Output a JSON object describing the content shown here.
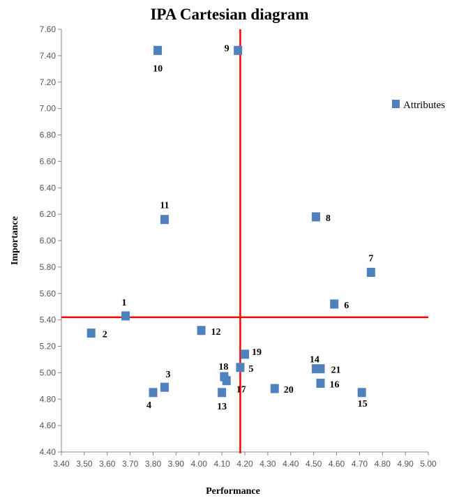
{
  "chart_data": {
    "type": "scatter",
    "title": "IPA Cartesian diagram",
    "xlabel": "Performance",
    "ylabel": "Importance",
    "xlim": [
      3.4,
      5.0
    ],
    "ylim": [
      4.4,
      7.6
    ],
    "x_ticks": [
      "3.40",
      "3.50",
      "3.60",
      "3.70",
      "3.80",
      "3.90",
      "4.00",
      "4.10",
      "4.20",
      "4.30",
      "4.40",
      "4.50",
      "4.60",
      "4.70",
      "4.80",
      "4.90",
      "5.00"
    ],
    "y_ticks": [
      "4.40",
      "4.60",
      "4.80",
      "5.00",
      "5.20",
      "5.40",
      "5.60",
      "5.80",
      "6.00",
      "6.20",
      "6.40",
      "6.60",
      "6.80",
      "7.00",
      "7.20",
      "7.40",
      "7.60"
    ],
    "grid": false,
    "legend": {
      "placement": "right",
      "entries": [
        "Attributes"
      ]
    },
    "marker_color": "#4F81BD",
    "reference_line_color": "#FF0000",
    "reference_lines": {
      "x": 4.18,
      "y": 5.42
    },
    "series": [
      {
        "name": "Attributes",
        "points": [
          {
            "label": "1",
            "x": 3.68,
            "y": 5.43
          },
          {
            "label": "2",
            "x": 3.53,
            "y": 5.3
          },
          {
            "label": "3",
            "x": 3.85,
            "y": 4.89
          },
          {
            "label": "4",
            "x": 3.8,
            "y": 4.85
          },
          {
            "label": "5",
            "x": 4.18,
            "y": 5.04
          },
          {
            "label": "6",
            "x": 4.59,
            "y": 5.52
          },
          {
            "label": "7",
            "x": 4.75,
            "y": 5.76
          },
          {
            "label": "8",
            "x": 4.51,
            "y": 6.18
          },
          {
            "label": "9",
            "x": 4.17,
            "y": 7.44
          },
          {
            "label": "10",
            "x": 3.82,
            "y": 7.44
          },
          {
            "label": "11",
            "x": 3.85,
            "y": 6.16
          },
          {
            "label": "12",
            "x": 4.01,
            "y": 5.32
          },
          {
            "label": "13",
            "x": 4.1,
            "y": 4.85
          },
          {
            "label": "14",
            "x": 4.51,
            "y": 5.03
          },
          {
            "label": "15",
            "x": 4.71,
            "y": 4.85
          },
          {
            "label": "16",
            "x": 4.53,
            "y": 4.92
          },
          {
            "label": "17",
            "x": 4.12,
            "y": 4.94
          },
          {
            "label": "18",
            "x": 4.11,
            "y": 4.97
          },
          {
            "label": "19",
            "x": 4.2,
            "y": 5.14
          },
          {
            "label": "20",
            "x": 4.33,
            "y": 4.88
          },
          {
            "label": "21",
            "x": 4.53,
            "y": 5.03
          }
        ]
      }
    ]
  }
}
